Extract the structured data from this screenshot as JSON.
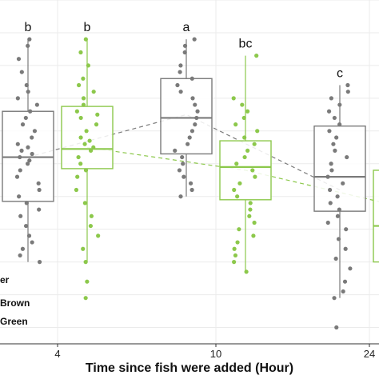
{
  "chart_data": {
    "type": "box",
    "xlabel": "Time since fish were added (Hour)",
    "x_ticks": [
      "4",
      "10",
      "24"
    ],
    "legend": {
      "title_fragment": "er",
      "entries": [
        "Brown",
        "Green"
      ],
      "placement": "bottom-left"
    },
    "grid": true,
    "colors": {
      "Brown": "#7a7a7a",
      "Green": "#8cc84b"
    },
    "groups": [
      {
        "time": "4",
        "series": "Brown",
        "letter": "b",
        "q1": 0.385,
        "median": 0.52,
        "q3": 0.66,
        "whisker_low": 0.2,
        "whisker_high": 0.88,
        "points": [
          0.86,
          0.88,
          0.82,
          0.78,
          0.74,
          0.72,
          0.7,
          0.68,
          0.66,
          0.64,
          0.62,
          0.6,
          0.58,
          0.56,
          0.55,
          0.54,
          0.53,
          0.52,
          0.51,
          0.5,
          0.48,
          0.46,
          0.44,
          0.42,
          0.4,
          0.38,
          0.36,
          0.34,
          0.31,
          0.28,
          0.26,
          0.24,
          0.22,
          0.2
        ]
      },
      {
        "time": "4",
        "series": "Green",
        "letter": "b",
        "q1": 0.485,
        "median": 0.545,
        "q3": 0.675,
        "whisker_low": 0.2,
        "whisker_high": 0.88,
        "points": [
          0.88,
          0.84,
          0.8,
          0.76,
          0.74,
          0.72,
          0.7,
          0.68,
          0.66,
          0.65,
          0.64,
          0.62,
          0.6,
          0.58,
          0.57,
          0.56,
          0.55,
          0.54,
          0.52,
          0.5,
          0.48,
          0.46,
          0.42,
          0.38,
          0.34,
          0.31,
          0.28,
          0.24,
          0.2,
          0.14,
          0.09
        ]
      },
      {
        "time": "10",
        "series": "Brown",
        "letter": "a",
        "q1": 0.53,
        "median": 0.64,
        "q3": 0.76,
        "whisker_low": 0.4,
        "whisker_high": 0.88,
        "points": [
          0.88,
          0.86,
          0.84,
          0.8,
          0.78,
          0.76,
          0.74,
          0.72,
          0.7,
          0.68,
          0.66,
          0.64,
          0.62,
          0.6,
          0.58,
          0.56,
          0.54,
          0.52,
          0.5,
          0.48,
          0.46,
          0.44,
          0.42,
          0.4
        ]
      },
      {
        "time": "10",
        "series": "Green",
        "letter": "bc",
        "q1": 0.39,
        "median": 0.49,
        "q3": 0.57,
        "whisker_low": 0.17,
        "whisker_high": 0.83,
        "points": [
          0.83,
          0.7,
          0.68,
          0.66,
          0.64,
          0.62,
          0.6,
          0.58,
          0.56,
          0.54,
          0.52,
          0.5,
          0.48,
          0.46,
          0.44,
          0.42,
          0.4,
          0.38,
          0.36,
          0.34,
          0.32,
          0.3,
          0.28,
          0.26,
          0.24,
          0.22,
          0.2,
          0.17
        ]
      },
      {
        "time": "24",
        "series": "Brown",
        "letter": "c",
        "q1": 0.355,
        "median": 0.46,
        "q3": 0.615,
        "whisker_low": 0.09,
        "whisker_high": 0.74,
        "points": [
          0.74,
          0.72,
          0.7,
          0.68,
          0.66,
          0.64,
          0.62,
          0.6,
          0.58,
          0.56,
          0.54,
          0.52,
          0.5,
          0.48,
          0.46,
          0.44,
          0.42,
          0.4,
          0.38,
          0.36,
          0.34,
          0.32,
          0.3,
          0.27,
          0.24,
          0.21,
          0.18,
          0.14,
          0.11,
          0.09,
          0.0
        ]
      },
      {
        "time": "24",
        "series": "Green",
        "letter": "",
        "q1": 0.2,
        "median": 0.31,
        "q3": 0.48,
        "whisker_low": 0.2,
        "whisker_high": 0.48,
        "points": []
      }
    ],
    "mean_lines": {
      "Brown": [
        0.52,
        0.65,
        0.42
      ],
      "Green": [
        0.55,
        0.48,
        0.37
      ]
    },
    "ylim": [
      -0.05,
      1.0
    ]
  }
}
